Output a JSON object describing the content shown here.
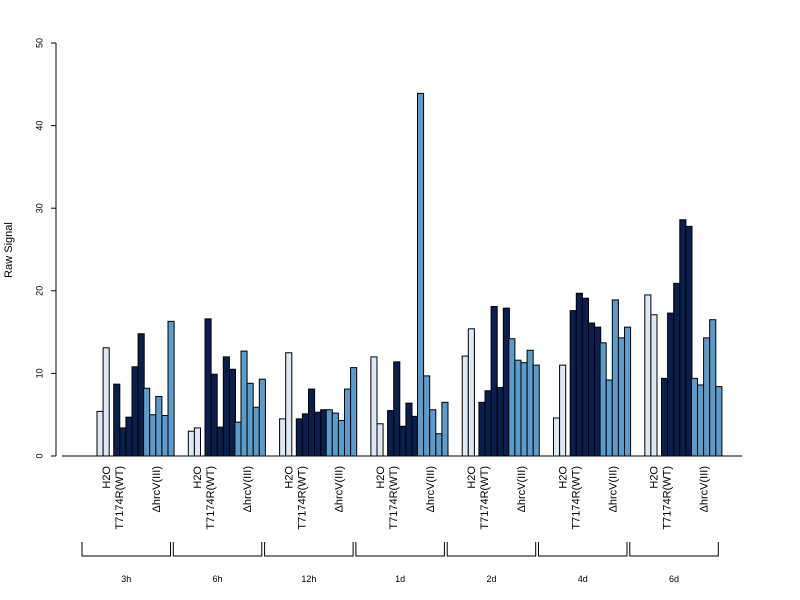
{
  "chart_data": {
    "type": "bar",
    "ylabel": "Raw Signal",
    "ylim": [
      0,
      50
    ],
    "yticks": [
      0,
      10,
      20,
      30,
      40,
      50
    ],
    "colors": {
      "H2O": "#dde8f4",
      "T7174R(WT)": "#0b1f4f",
      "ΔhrcV(III)": "#5b9ccb"
    },
    "timepoints": [
      {
        "label": "3h",
        "groups": [
          {
            "label": "H2O",
            "values": [
              5.4,
              13.1
            ]
          },
          {
            "label": "T7174R(WT)",
            "values": [
              8.7,
              3.4,
              4.7,
              10.8,
              14.8
            ]
          },
          {
            "label": "ΔhrcV(III)",
            "values": [
              8.2,
              5.0,
              7.2,
              4.9,
              16.3
            ]
          }
        ]
      },
      {
        "label": "6h",
        "groups": [
          {
            "label": "H2O",
            "values": [
              3.0,
              3.4
            ]
          },
          {
            "label": "T7174R(WT)",
            "values": [
              16.6,
              9.9,
              3.5,
              12.0,
              10.5
            ]
          },
          {
            "label": "ΔhrcV(III)",
            "values": [
              4.1,
              12.7,
              8.8,
              5.9,
              9.3
            ]
          }
        ]
      },
      {
        "label": "12h",
        "groups": [
          {
            "label": "H2O",
            "values": [
              4.5,
              12.5
            ]
          },
          {
            "label": "T7174R(WT)",
            "values": [
              4.5,
              5.1,
              8.1,
              5.3,
              5.6
            ]
          },
          {
            "label": "ΔhrcV(III)",
            "values": [
              5.6,
              5.2,
              4.3,
              8.1,
              10.7
            ]
          }
        ]
      },
      {
        "label": "1d",
        "groups": [
          {
            "label": "H2O",
            "values": [
              12.0,
              3.9
            ]
          },
          {
            "label": "T7174R(WT)",
            "values": [
              5.5,
              11.4,
              3.6,
              6.4,
              4.8
            ]
          },
          {
            "label": "ΔhrcV(III)",
            "values": [
              43.9,
              9.7,
              5.6,
              2.7,
              6.5
            ]
          }
        ]
      },
      {
        "label": "2d",
        "groups": [
          {
            "label": "H2O",
            "values": [
              12.1,
              15.4
            ]
          },
          {
            "label": "T7174R(WT)",
            "values": [
              6.5,
              7.9,
              18.1,
              8.3,
              17.9
            ]
          },
          {
            "label": "ΔhrcV(III)",
            "values": [
              14.2,
              11.6,
              11.3,
              12.8,
              11.0
            ]
          }
        ]
      },
      {
        "label": "4d",
        "groups": [
          {
            "label": "H2O",
            "values": [
              4.6,
              11.0
            ]
          },
          {
            "label": "T7174R(WT)",
            "values": [
              17.6,
              19.7,
              19.1,
              16.1,
              15.6
            ]
          },
          {
            "label": "ΔhrcV(III)",
            "values": [
              13.7,
              9.2,
              18.9,
              14.3,
              15.6
            ]
          }
        ]
      },
      {
        "label": "6d",
        "groups": [
          {
            "label": "H2O",
            "values": [
              19.5,
              17.1
            ]
          },
          {
            "label": "T7174R(WT)",
            "values": [
              9.4,
              17.3,
              20.9,
              28.6,
              27.8
            ]
          },
          {
            "label": "ΔhrcV(III)",
            "values": [
              9.4,
              8.6,
              14.3,
              16.5,
              8.4
            ]
          }
        ]
      }
    ]
  }
}
